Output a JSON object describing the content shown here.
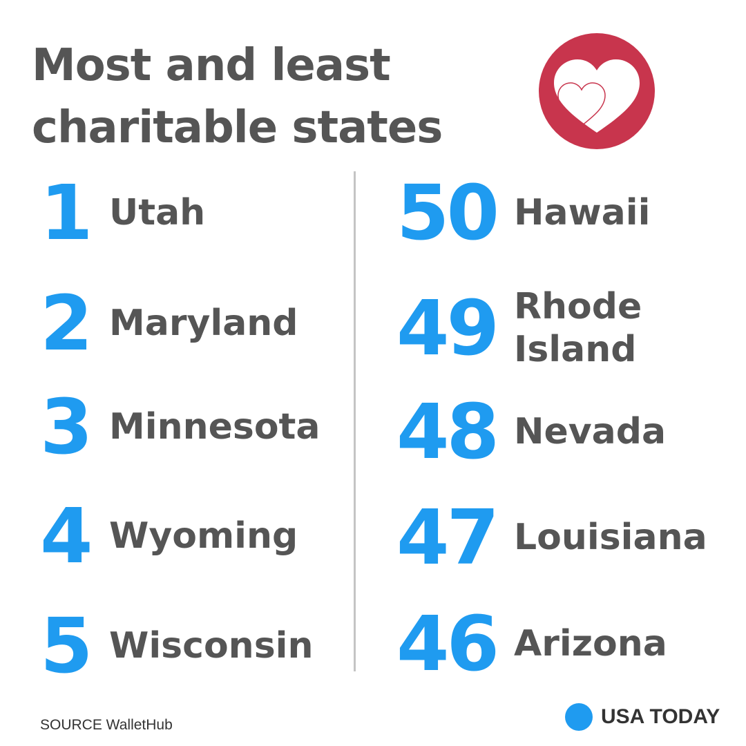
{
  "title": "Most and least charitable states",
  "logo": {
    "icon": "hearts-icon",
    "circle_color": "#c8354d"
  },
  "colors": {
    "rank": "#1f9bf0",
    "text": "#555555"
  },
  "most_charitable": [
    {
      "rank": "1",
      "state": "Utah"
    },
    {
      "rank": "2",
      "state": "Maryland"
    },
    {
      "rank": "3",
      "state": "Minnesota"
    },
    {
      "rank": "4",
      "state": "Wyoming"
    },
    {
      "rank": "5",
      "state": "Wisconsin"
    }
  ],
  "least_charitable": [
    {
      "rank": "50",
      "state": "Hawaii"
    },
    {
      "rank": "49",
      "state": "Rhode\nIsland"
    },
    {
      "rank": "48",
      "state": "Nevada"
    },
    {
      "rank": "47",
      "state": "Louisiana"
    },
    {
      "rank": "46",
      "state": "Arizona"
    }
  ],
  "footer": {
    "source": "SOURCE WalletHub",
    "brand": "USA TODAY"
  }
}
